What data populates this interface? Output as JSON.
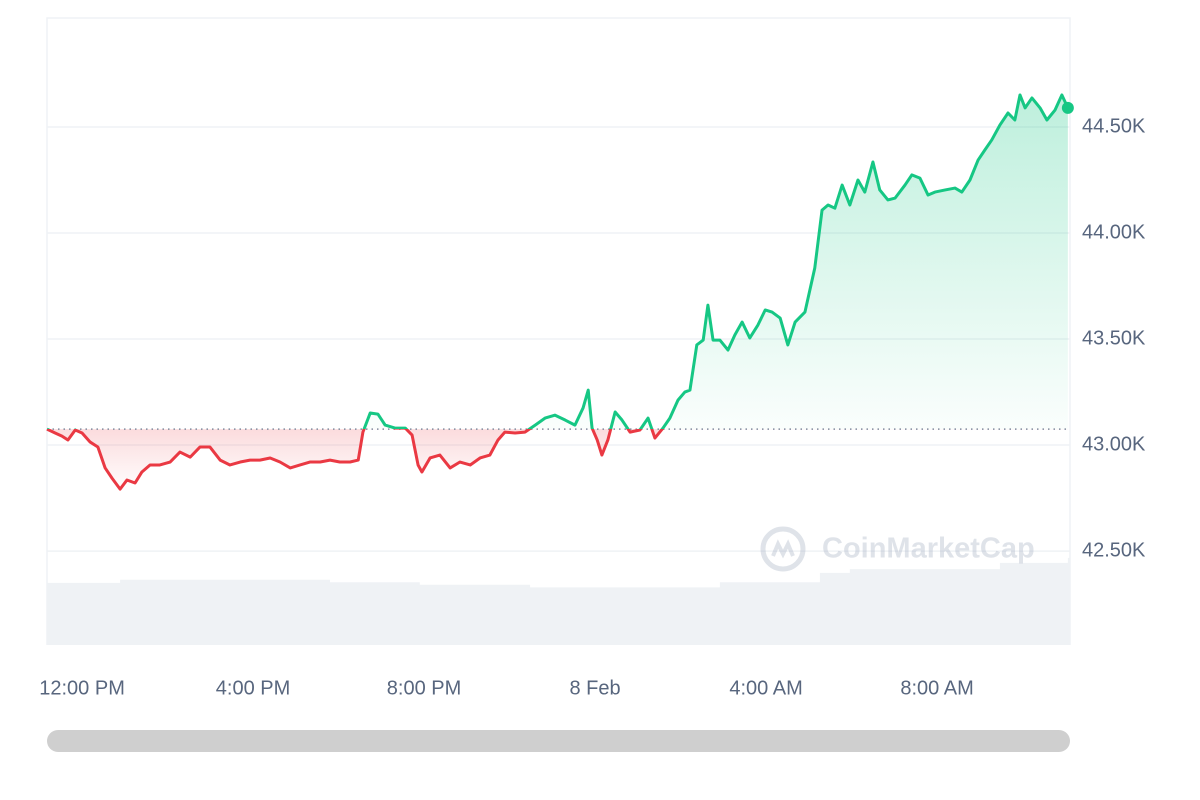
{
  "chart_data": {
    "type": "line",
    "x": [
      -0.82,
      -0.63,
      -0.47,
      -0.33,
      -0.16,
      0,
      0.19,
      0.37,
      0.54,
      0.7,
      0.89,
      1.05,
      1.24,
      1.4,
      1.59,
      1.82,
      2.06,
      2.29,
      2.53,
      2.76,
      2.99,
      3.23,
      3.46,
      3.7,
      3.93,
      4.16,
      4.4,
      4.63,
      4.87,
      5.1,
      5.33,
      5.57,
      5.8,
      6.03,
      6.27,
      6.46,
      6.57,
      6.74,
      6.92,
      7.09,
      7.32,
      7.56,
      7.72,
      7.86,
      7.95,
      8.14,
      8.37,
      8.61,
      8.84,
      9.08,
      9.31,
      9.54,
      9.73,
      9.89,
      10.13,
      10.36,
      10.6,
      10.83,
      11.06,
      11.3,
      11.53,
      11.72,
      11.84,
      11.93,
      12.05,
      12.16,
      12.3,
      12.47,
      12.63,
      12.82,
      13.05,
      13.24,
      13.4,
      13.59,
      13.75,
      13.94,
      14.1,
      14.22,
      14.38,
      14.53,
      14.64,
      14.76,
      14.92,
      15.11,
      15.27,
      15.44,
      15.62,
      15.81,
      15.98,
      16.14,
      16.33,
      16.51,
      16.68,
      16.91,
      17.14,
      17.31,
      17.45,
      17.61,
      17.78,
      17.96,
      18.15,
      18.31,
      18.5,
      18.66,
      18.85,
      19.02,
      19.25,
      19.41,
      19.6,
      19.79,
      19.95,
      20.19,
      20.42,
      20.58,
      20.77,
      20.96,
      21.12,
      21.28,
      21.47,
      21.66,
      21.82,
      21.94,
      22.06,
      22.22,
      22.41,
      22.57,
      22.76,
      22.92,
      23.06
    ],
    "series": [
      {
        "name": "Price",
        "color": "#16c784",
        "color_below": "#ea3943",
        "values": [
          43075,
          43057,
          43042,
          43024,
          43071,
          43057,
          43014,
          42991,
          42892,
          42844,
          42792,
          42835,
          42821,
          42873,
          42906,
          42906,
          42920,
          42967,
          42943,
          42991,
          42991,
          42929,
          42906,
          42920,
          42929,
          42929,
          42939,
          42920,
          42892,
          42906,
          42920,
          42920,
          42929,
          42920,
          42920,
          42929,
          43061,
          43151,
          43146,
          43094,
          43080,
          43080,
          43047,
          42906,
          42873,
          42939,
          42953,
          42892,
          42920,
          42906,
          42939,
          42953,
          43024,
          43061,
          43057,
          43061,
          43094,
          43127,
          43141,
          43118,
          43094,
          43175,
          43259,
          43080,
          43024,
          42953,
          43024,
          43156,
          43118,
          43061,
          43071,
          43127,
          43033,
          43080,
          43127,
          43212,
          43250,
          43259,
          43472,
          43495,
          43660,
          43495,
          43495,
          43448,
          43519,
          43580,
          43505,
          43566,
          43637,
          43627,
          43599,
          43472,
          43580,
          43627,
          43835,
          44108,
          44132,
          44117,
          44226,
          44132,
          44250,
          44193,
          44335,
          44203,
          44156,
          44165,
          44226,
          44274,
          44259,
          44179,
          44193,
          44203,
          44212,
          44193,
          44250,
          44344,
          44392,
          44439,
          44509,
          44566,
          44533,
          44651,
          44590,
          44637,
          44590,
          44533,
          44580,
          44651,
          44590
        ]
      }
    ],
    "baseline": 43075,
    "volume": {
      "color": "#eff2f5",
      "x": [
        -0.82,
        0.89,
        5.8,
        7.9,
        10.48,
        14.45,
        14.92,
        17.26,
        17.96,
        21.47,
        23.06
      ],
      "values": [
        99,
        104,
        100,
        96,
        92,
        92,
        100,
        115,
        121,
        131,
        139
      ]
    },
    "y2lim": [
      0,
      1000
    ],
    "xlim": [
      -0.82,
      23.11
    ],
    "xticks": [
      {
        "value": 0,
        "label": "12:00 PM"
      },
      {
        "value": 4,
        "label": "4:00 PM"
      },
      {
        "value": 8,
        "label": "8:00 PM"
      },
      {
        "value": 12,
        "label": "8 Feb"
      },
      {
        "value": 16,
        "label": "4:00 AM"
      },
      {
        "value": 20,
        "label": "8:00 AM"
      }
    ],
    "ylim": [
      42057,
      45014
    ],
    "yticks": [
      {
        "value": 42500,
        "label": "42.50K"
      },
      {
        "value": 43000,
        "label": "43.00K"
      },
      {
        "value": 43500,
        "label": "43.50K"
      },
      {
        "value": 44000,
        "label": "44.00K"
      },
      {
        "value": 44500,
        "label": "44.50K"
      }
    ],
    "grid": true,
    "watermark": "CoinMarketCap"
  }
}
